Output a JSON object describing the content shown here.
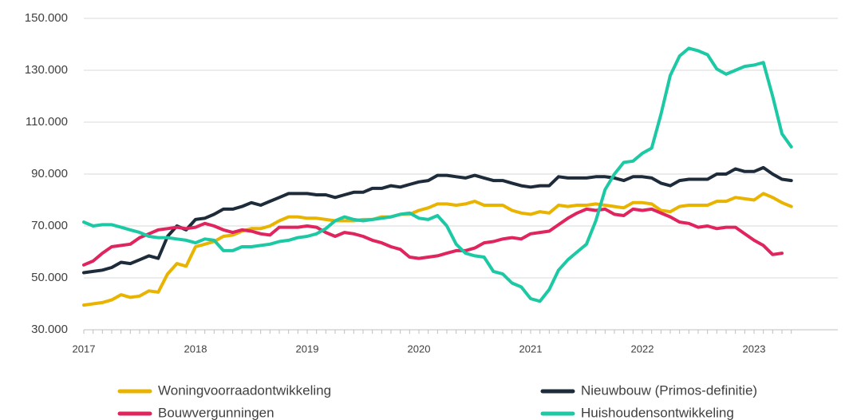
{
  "chart_data": {
    "type": "line",
    "categories": [
      "2017",
      null,
      null,
      null,
      null,
      null,
      null,
      null,
      null,
      null,
      null,
      null,
      "2018",
      null,
      null,
      null,
      null,
      null,
      null,
      null,
      null,
      null,
      null,
      null,
      "2019",
      null,
      null,
      null,
      null,
      null,
      null,
      null,
      null,
      null,
      null,
      null,
      "2020",
      null,
      null,
      null,
      null,
      null,
      null,
      null,
      null,
      null,
      null,
      null,
      "2021",
      null,
      null,
      null,
      null,
      null,
      null,
      null,
      null,
      null,
      null,
      null,
      "2022",
      null,
      null,
      null,
      null,
      null,
      null,
      null,
      null,
      null,
      null,
      null,
      "2023",
      null,
      null,
      null,
      null
    ],
    "ylim": [
      30000,
      150000
    ],
    "yticks": [
      {
        "value": 30000,
        "label": "30.000"
      },
      {
        "value": 50000,
        "label": "50.000"
      },
      {
        "value": 70000,
        "label": "70.000"
      },
      {
        "value": 90000,
        "label": "90.000"
      },
      {
        "value": 110000,
        "label": "110.000"
      },
      {
        "value": 130000,
        "label": "130.000"
      },
      {
        "value": 150000,
        "label": "150.000"
      }
    ],
    "grid": true,
    "series": [
      {
        "name": "Woningvoorraadontwikkeling",
        "color": "#e8b400",
        "values": [
          39500,
          40000,
          40500,
          41500,
          43500,
          42500,
          43000,
          45000,
          44500,
          51500,
          55500,
          54500,
          62000,
          63000,
          64000,
          66000,
          66500,
          68000,
          69000,
          69000,
          70000,
          72000,
          73500,
          73500,
          73000,
          73000,
          72500,
          72000,
          72000,
          72000,
          72500,
          72500,
          73500,
          73500,
          74500,
          74500,
          76000,
          77000,
          78500,
          78500,
          78000,
          78500,
          79500,
          78000,
          78000,
          78000,
          76000,
          75000,
          74500,
          75500,
          75000,
          78000,
          77500,
          78000,
          78000,
          78500,
          78000,
          77500,
          77000,
          79000,
          79000,
          78500,
          76000,
          75500,
          77500,
          78000,
          78000,
          78000,
          79500,
          79500,
          81000,
          80500,
          80000,
          82500,
          81000,
          79000,
          77500
        ]
      },
      {
        "name": "Nieuwbouw (Primos-definitie)",
        "color": "#1d2b3a",
        "values": [
          52000,
          52500,
          53000,
          54000,
          56000,
          55500,
          57000,
          58500,
          57500,
          66000,
          70000,
          68500,
          72500,
          73000,
          74500,
          76500,
          76500,
          77500,
          79000,
          78000,
          79500,
          81000,
          82500,
          82500,
          82500,
          82000,
          82000,
          81000,
          82000,
          83000,
          83000,
          84500,
          84500,
          85500,
          85000,
          86000,
          87000,
          87500,
          89500,
          89500,
          89000,
          88500,
          89500,
          88500,
          87500,
          87500,
          86500,
          85500,
          85000,
          85500,
          85500,
          89000,
          88500,
          88500,
          88500,
          89000,
          89000,
          88500,
          87500,
          89000,
          89000,
          88500,
          86500,
          85500,
          87500,
          88000,
          88000,
          88000,
          90000,
          90000,
          92000,
          91000,
          91000,
          92500,
          90000,
          88000,
          87500
        ]
      },
      {
        "name": "Bouwvergunningen",
        "color": "#e0245e",
        "values": [
          55000,
          56500,
          59500,
          62000,
          62500,
          63000,
          65500,
          67000,
          68500,
          69000,
          69500,
          69000,
          69500,
          71000,
          70000,
          68500,
          67500,
          68500,
          68000,
          67000,
          66500,
          69500,
          69500,
          69500,
          70000,
          69500,
          67500,
          66000,
          67500,
          67000,
          66000,
          64500,
          63500,
          62000,
          61000,
          58000,
          57500,
          58000,
          58500,
          59500,
          60500,
          60500,
          61500,
          63500,
          64000,
          65000,
          65500,
          65000,
          67000,
          67500,
          68000,
          70500,
          73000,
          75000,
          76500,
          76000,
          76500,
          74500,
          74000,
          76500,
          76000,
          76500,
          75000,
          73500,
          71500,
          71000,
          69500,
          70000,
          69000,
          69500,
          69500,
          67000,
          64500,
          62500,
          59000,
          59500,
          null
        ]
      },
      {
        "name": "Huishoudensontwikkeling",
        "color": "#1cc9a4",
        "values": [
          71500,
          70000,
          70500,
          70500,
          69500,
          68500,
          67500,
          66000,
          65500,
          65500,
          65000,
          64500,
          63500,
          65000,
          64500,
          60500,
          60500,
          62000,
          62000,
          62500,
          63000,
          64000,
          64500,
          65500,
          66000,
          67000,
          69000,
          72000,
          73500,
          72500,
          72000,
          72500,
          73000,
          73500,
          74500,
          75000,
          73000,
          72500,
          74000,
          70000,
          63000,
          59500,
          58500,
          58000,
          52500,
          51500,
          48000,
          46500,
          42000,
          41000,
          45500,
          53000,
          57000,
          60000,
          63000,
          72000,
          84000,
          90000,
          94500,
          95000,
          98000,
          100000,
          113000,
          128000,
          135500,
          138500,
          137500,
          136000,
          130500,
          128500,
          130000,
          131500,
          132000,
          133000,
          120000,
          105500,
          100500
        ]
      }
    ]
  }
}
